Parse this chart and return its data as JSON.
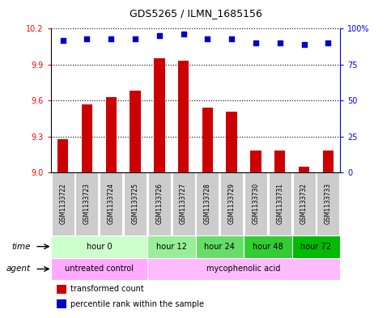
{
  "title": "GDS5265 / ILMN_1685156",
  "samples": [
    "GSM1133722",
    "GSM1133723",
    "GSM1133724",
    "GSM1133725",
    "GSM1133726",
    "GSM1133727",
    "GSM1133728",
    "GSM1133729",
    "GSM1133730",
    "GSM1133731",
    "GSM1133732",
    "GSM1133733"
  ],
  "transformed_count": [
    9.28,
    9.57,
    9.63,
    9.68,
    9.95,
    9.93,
    9.54,
    9.51,
    9.18,
    9.18,
    9.05,
    9.18
  ],
  "percentile_rank": [
    92,
    93,
    93,
    93,
    95,
    96,
    93,
    93,
    90,
    90,
    89,
    90
  ],
  "ylim_left": [
    9.0,
    10.2
  ],
  "ylim_right": [
    0,
    100
  ],
  "yticks_left": [
    9.0,
    9.3,
    9.6,
    9.9,
    10.2
  ],
  "yticks_right": [
    0,
    25,
    50,
    75,
    100
  ],
  "bar_color": "#cc0000",
  "dot_color": "#0000cc",
  "time_groups": [
    {
      "label": "hour 0",
      "start": 0,
      "end": 3,
      "color": "#ccffcc"
    },
    {
      "label": "hour 12",
      "start": 4,
      "end": 5,
      "color": "#99ee99"
    },
    {
      "label": "hour 24",
      "start": 6,
      "end": 7,
      "color": "#66dd66"
    },
    {
      "label": "hour 48",
      "start": 8,
      "end": 9,
      "color": "#33cc33"
    },
    {
      "label": "hour 72",
      "start": 10,
      "end": 11,
      "color": "#00bb00"
    }
  ],
  "agent_groups": [
    {
      "label": "untreated control",
      "start": 0,
      "end": 3,
      "color": "#ffaaff"
    },
    {
      "label": "mycophenolic acid",
      "start": 4,
      "end": 11,
      "color": "#ffbbff"
    }
  ],
  "legend_bar_label": "transformed count",
  "legend_dot_label": "percentile rank within the sample",
  "background_color": "#ffffff",
  "sample_box_color": "#cccccc",
  "time_label": "time",
  "agent_label": "agent"
}
